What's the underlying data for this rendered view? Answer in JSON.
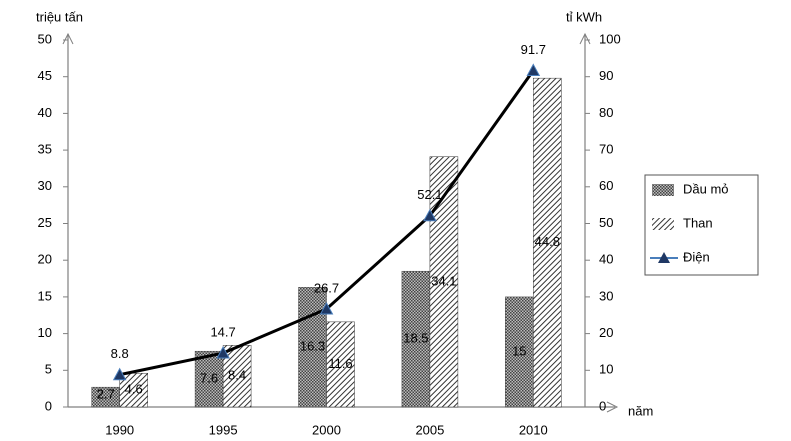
{
  "chart_data": {
    "type": "bar-line",
    "y_label": "triệu tấn",
    "y2_label": "tỉ kWh",
    "x_label": "năm",
    "categories": [
      "1990",
      "1995",
      "2000",
      "2005",
      "2010"
    ],
    "ylim": [
      0,
      50
    ],
    "yticks": [
      0,
      5,
      10,
      15,
      20,
      25,
      30,
      35,
      40,
      45,
      50
    ],
    "y2lim": [
      0,
      100
    ],
    "y2ticks": [
      0,
      10,
      20,
      30,
      40,
      50,
      60,
      70,
      80,
      90,
      100
    ],
    "series": [
      {
        "name": "Dầu mỏ",
        "type": "bar",
        "color": "#444444",
        "values": [
          2.7,
          7.6,
          16.3,
          18.5,
          15
        ]
      },
      {
        "name": "Than",
        "type": "bar",
        "color": "#333333",
        "values": [
          4.6,
          8.4,
          11.6,
          34.1,
          44.8
        ]
      },
      {
        "name": "Điện",
        "type": "line",
        "axis": "y2",
        "color": "#000000",
        "values": [
          8.8,
          14.7,
          26.7,
          52.1,
          91.7
        ]
      }
    ]
  }
}
